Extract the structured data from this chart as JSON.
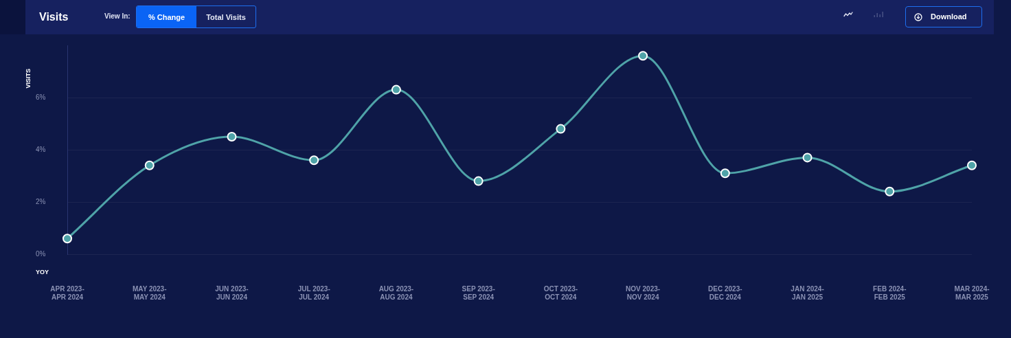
{
  "chart_data": {
    "type": "line",
    "title": "Visits",
    "ylabel": "VISITS",
    "annotations": [
      "YOY",
      "View In:",
      "% Change",
      "Total Visits",
      "Download"
    ],
    "categories": [
      "APR 2023-APR 2024",
      "MAY 2023-MAY 2024",
      "JUN 2023-JUN 2024",
      "JUL 2023-JUL 2024",
      "AUG 2023-AUG 2024",
      "SEP 2023-SEP 2024",
      "OCT 2023-OCT 2024",
      "NOV 2023-NOV 2024",
      "DEC 2023-DEC 2024",
      "JAN 2024-JAN 2025",
      "FEB 2024-FEB 2025",
      "MAR 2024-MAR 2025"
    ],
    "series": [
      {
        "color": "#4fa3a8",
        "values": [
          0.6,
          3.4,
          4.5,
          3.6,
          6.3,
          2.8,
          4.8,
          7.6,
          3.1,
          3.7,
          2.4,
          3.4
        ]
      }
    ],
    "ylim": [
      0,
      8
    ],
    "yticks": [
      {
        "value": 0,
        "label": "0%"
      },
      {
        "value": 2,
        "label": "2%"
      },
      {
        "value": 4,
        "label": "4%"
      },
      {
        "value": 6,
        "label": "6%"
      }
    ],
    "grid": "y",
    "marker": "circle",
    "line_style": "solid"
  }
}
